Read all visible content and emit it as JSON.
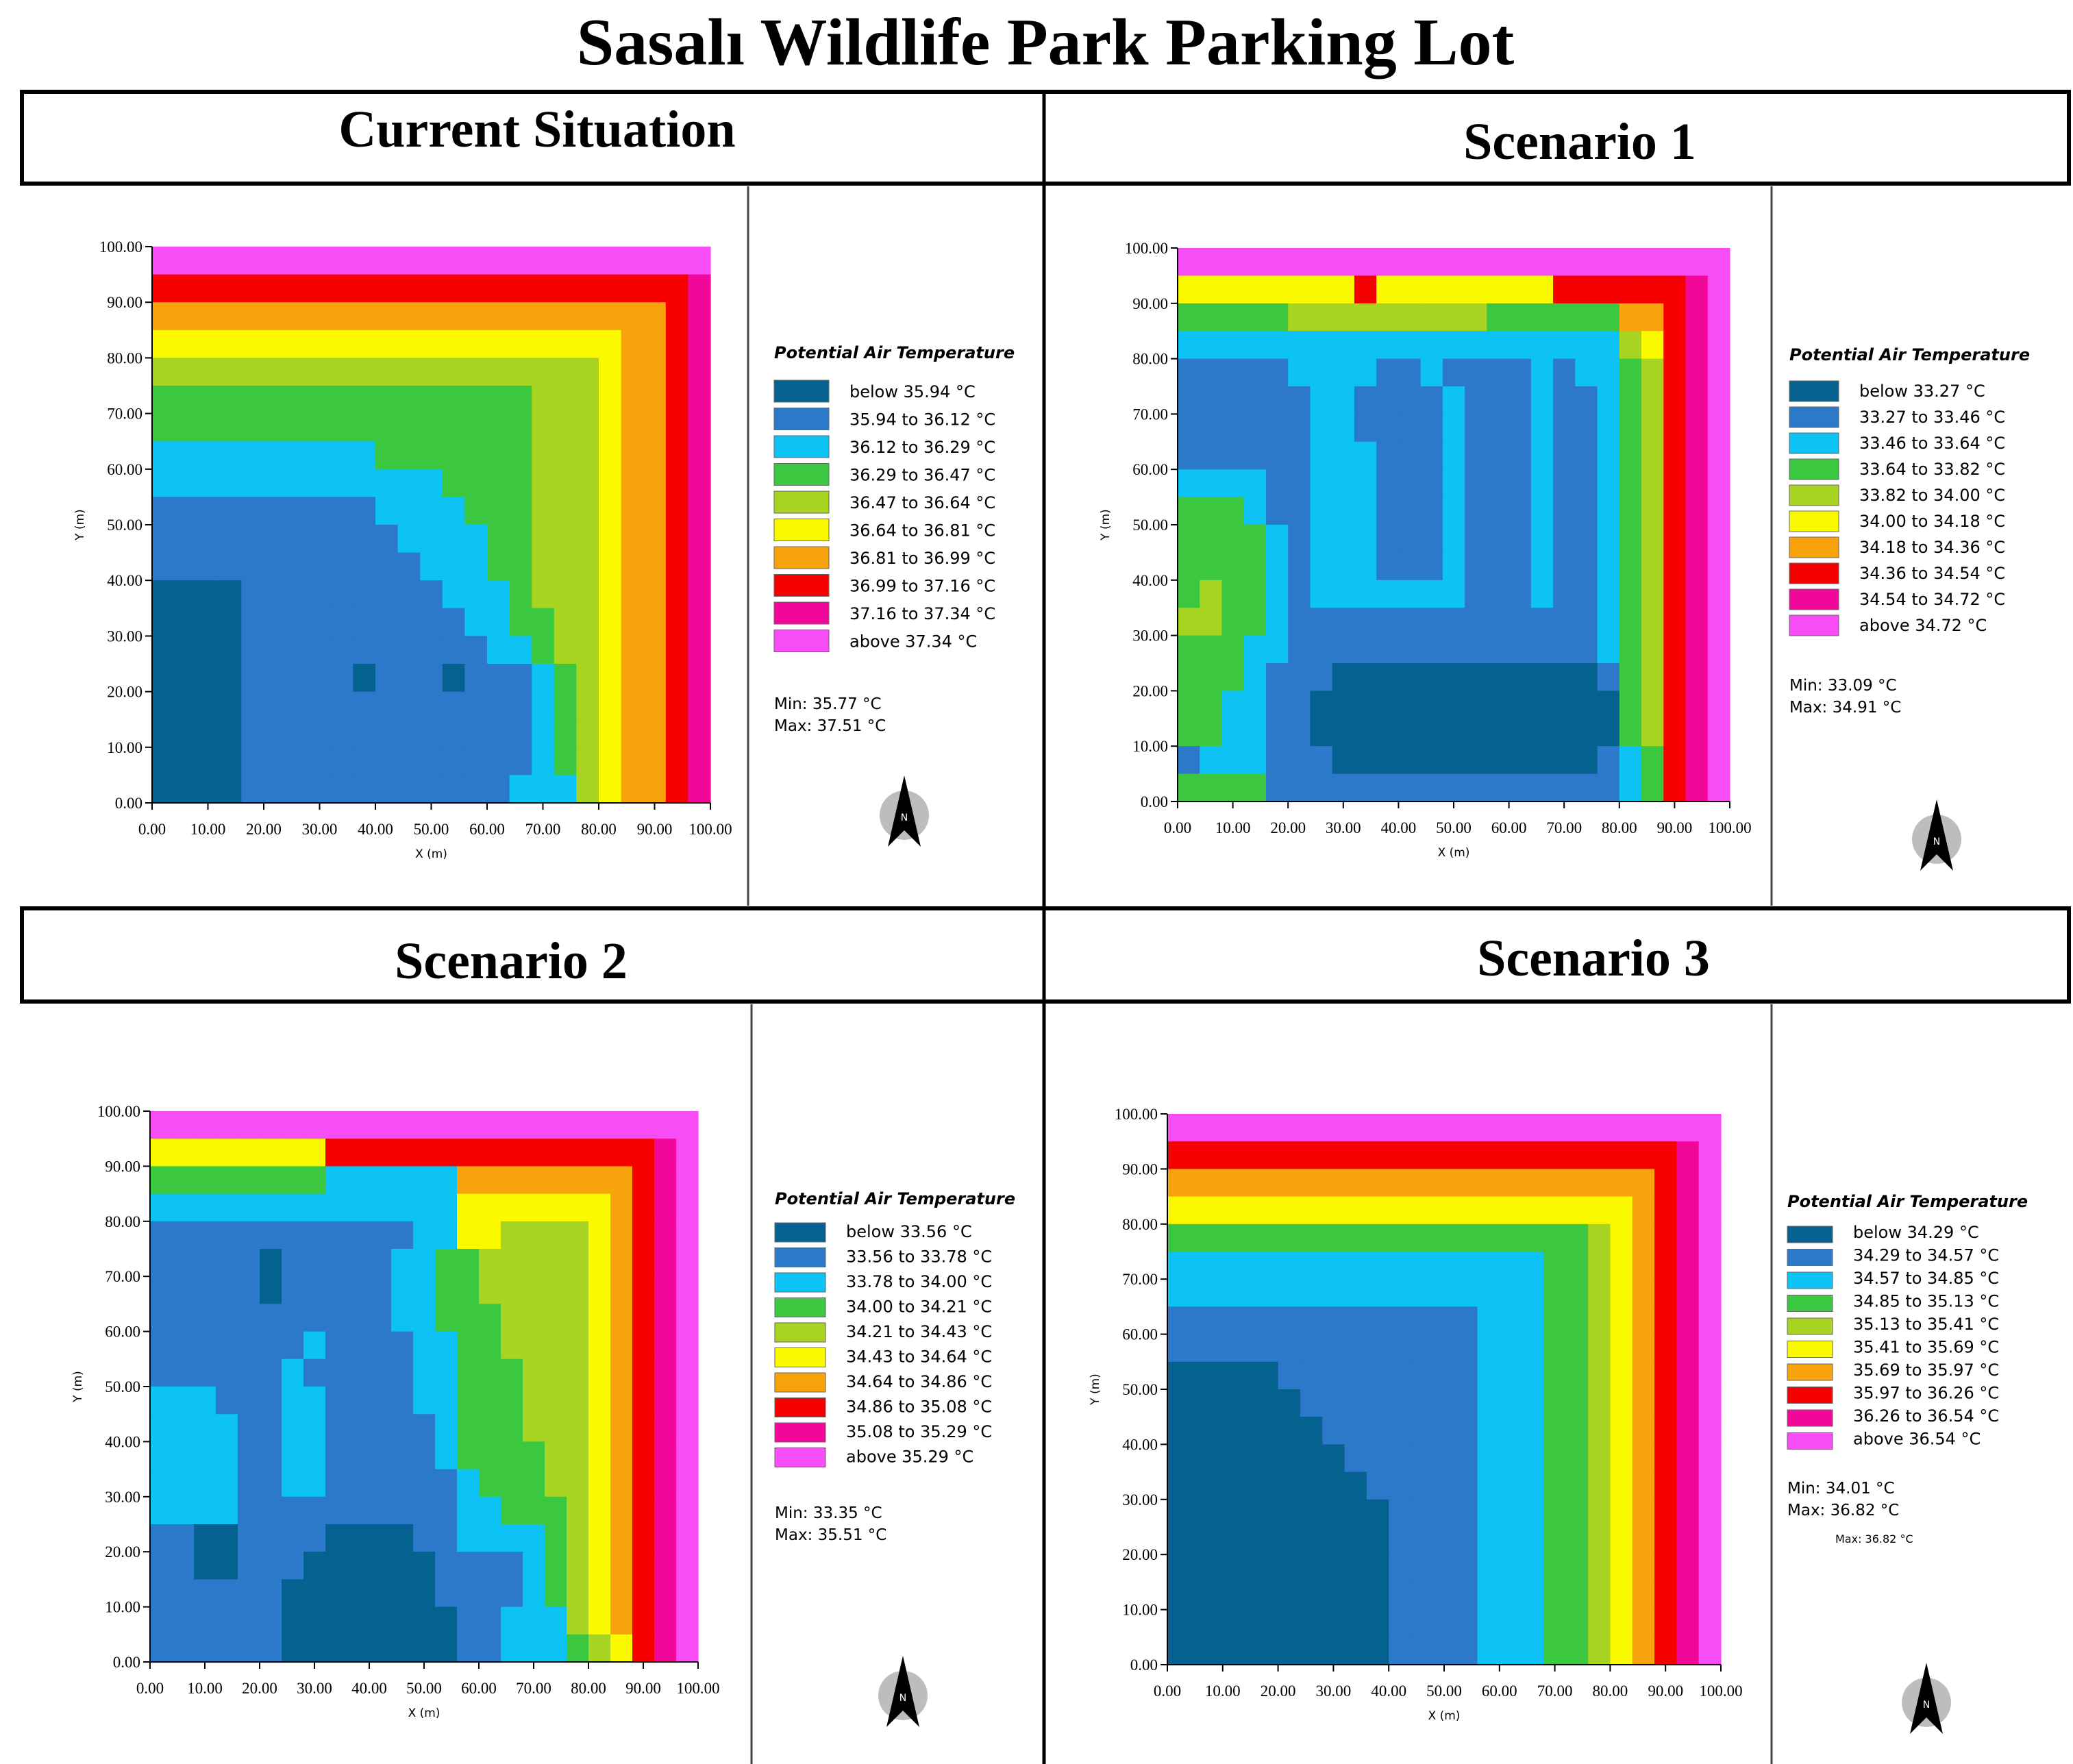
{
  "title": "Sasalı Wildlife Park Parking Lot",
  "colors": [
    "#05618f",
    "#2c78c9",
    "#0dc2f5",
    "#3cc741",
    "#a7d420",
    "#fbf900",
    "#f8a20c",
    "#f70000",
    "#f1089a",
    "#f84cf6"
  ],
  "legend_title": "Potential Air Temperature",
  "chart_data": [
    {
      "type": "heatmap",
      "panel_title": "Current Situation",
      "xlabel": "X (m)",
      "ylabel": "Y (m)",
      "xlim": [
        0,
        100
      ],
      "ylim": [
        0,
        100
      ],
      "xticks": [
        "0.00",
        "10.00",
        "20.00",
        "30.00",
        "40.00",
        "50.00",
        "60.00",
        "70.00",
        "80.00",
        "90.00",
        "100.00"
      ],
      "yticks": [
        "0.00",
        "10.00",
        "20.00",
        "30.00",
        "40.00",
        "50.00",
        "60.00",
        "70.00",
        "80.00",
        "90.00",
        "100.00"
      ],
      "legend": [
        "below 35.94 °C",
        "35.94 to 36.12 °C",
        "36.12 to 36.29 °C",
        "36.29 to 36.47 °C",
        "36.47 to 36.64 °C",
        "36.64 to 36.81 °C",
        "36.81 to 36.99 °C",
        "36.99 to 37.16 °C",
        "37.16 to 37.34 °C",
        "above 37.34 °C"
      ],
      "min_label": "Min: 35.77 °C",
      "max_label": "Max: 37.51 °C",
      "extra_label": "",
      "grid": [
        "9999999999999999999999999",
        "7777777777777777777777778",
        "6666666666666666666666678",
        "5555555555555555555556678",
        "4444444444444444444456678",
        "3333333333333333344456678",
        "3333333333333333344456678",
        "2222222222333333344456678",
        "2222222222222333344456678",
        "1111111111222233344456678",
        "1111111111122223344456678",
        "1111111111112223344456678",
        "0000111111111222344456678",
        "0000111111111122334456678",
        "0000111111111112234456678",
        "0000111110111011123456678",
        "0000111111111111123456678",
        "0000111111111111123456678",
        "0000111111111111123456678",
        "0000111111111111222456678"
      ]
    },
    {
      "type": "heatmap",
      "panel_title": "Scenario 1",
      "xlabel": "X (m)",
      "ylabel": "Y (m)",
      "xlim": [
        0,
        100
      ],
      "ylim": [
        0,
        100
      ],
      "xticks": [
        "0.00",
        "10.00",
        "20.00",
        "30.00",
        "40.00",
        "50.00",
        "60.00",
        "70.00",
        "80.00",
        "90.00",
        "100.00"
      ],
      "yticks": [
        "0.00",
        "10.00",
        "20.00",
        "30.00",
        "40.00",
        "50.00",
        "60.00",
        "70.00",
        "80.00",
        "90.00",
        "100.00"
      ],
      "legend": [
        "below 33.27 °C",
        "33.27 to 33.46 °C",
        "33.46 to 33.64 °C",
        "33.64 to 33.82 °C",
        "33.82 to 34.00 °C",
        "34.00 to 34.18 °C",
        "34.18 to 34.36 °C",
        "34.36 to 34.54 °C",
        "34.54 to 34.72 °C",
        "above 34.72 °C"
      ],
      "min_label": "Min: 33.09 °C",
      "max_label": "Max: 34.91 °C",
      "extra_label": "",
      "grid": [
        "9999999999999999999999999",
        "5555555575555555577777789",
        "3333344444444433333366789",
        "2222222222222222222245789",
        "1111122221121111212234789",
        "1111112211112111211234789",
        "1111112211112111211234789",
        "1111112221112111211234789",
        "2222112221112111211234789",
        "3332112221112111211234789",
        "3333212221112111211234789",
        "3333212221112111211234789",
        "3433212222222111211234789",
        "4433211111111111111234789",
        "3332211111111111111234789",
        "3332111000000000000134789",
        "3322110000000000000034789",
        "3322110000000000000034789",
        "1222111000000000000123789",
        "3333111111111111111123789"
      ]
    },
    {
      "type": "heatmap",
      "panel_title": "Scenario 2",
      "xlabel": "X (m)",
      "ylabel": "Y (m)",
      "xlim": [
        0,
        100
      ],
      "ylim": [
        0,
        100
      ],
      "xticks": [
        "0.00",
        "10.00",
        "20.00",
        "30.00",
        "40.00",
        "50.00",
        "60.00",
        "70.00",
        "80.00",
        "90.00",
        "100.00"
      ],
      "yticks": [
        "0.00",
        "10.00",
        "20.00",
        "30.00",
        "40.00",
        "50.00",
        "60.00",
        "70.00",
        "80.00",
        "90.00",
        "100.00"
      ],
      "legend": [
        "below 33.56 °C",
        "33.56 to 33.78 °C",
        "33.78 to 34.00 °C",
        "34.00 to 34.21 °C",
        "34.21 to 34.43 °C",
        "34.43 to 34.64 °C",
        "34.64 to 34.86 °C",
        "34.86 to 35.08 °C",
        "35.08 to 35.29 °C",
        "above 35.29 °C"
      ],
      "min_label": "Min: 33.35 °C",
      "max_label": "Max: 35.51 °C",
      "extra_label": "",
      "grid": [
        "9999999999999999999999999",
        "5555555577777777777777789",
        "3333333322222266666666789",
        "2222222222222255555556789",
        "1111111111112255444456789",
        "1111101111122334444456789",
        "1111101111122334444456789",
        "1111111111122333444456789",
        "1111111211112233444456789",
        "1111112111112233344456789",
        "2221112211112233344456789",
        "2222112211111233344456789",
        "2222112211111233334456789",
        "2222112211111123334456789",
        "2222111111111122333456789",
        "1100111100001122223456789",
        "1100111000000111123456789",
        "1111110000000111123456789",
        "1111110000000011222456789",
        "1111110000000011222345789"
      ]
    },
    {
      "type": "heatmap",
      "panel_title": "Scenario 3",
      "xlabel": "X (m)",
      "ylabel": "Y (m)",
      "xlim": [
        0,
        100
      ],
      "ylim": [
        0,
        100
      ],
      "xticks": [
        "0.00",
        "10.00",
        "20.00",
        "30.00",
        "40.00",
        "50.00",
        "60.00",
        "70.00",
        "80.00",
        "90.00",
        "100.00"
      ],
      "yticks": [
        "0.00",
        "10.00",
        "20.00",
        "30.00",
        "40.00",
        "50.00",
        "60.00",
        "70.00",
        "80.00",
        "90.00",
        "100.00"
      ],
      "legend": [
        "below 34.29 °C",
        "34.29 to 34.57 °C",
        "34.57 to 34.85 °C",
        "34.85 to 35.13 °C",
        "35.13 to 35.41 °C",
        "35.41 to 35.69 °C",
        "35.69 to 35.97 °C",
        "35.97 to 36.26 °C",
        "36.26 to 36.54 °C",
        "above 36.54 °C"
      ],
      "min_label": "Min: 34.01 °C",
      "max_label": "Max: 36.82 °C",
      "extra_label": "Max: 36.82 °C",
      "grid": [
        "9999999999999999999999999",
        "7777777777777777777777789",
        "6666666666666666666666789",
        "5555555555555555555556789",
        "3333333333333333333456789",
        "2222222222222222233456789",
        "2222222222222222233456789",
        "1111111111111122233456789",
        "1111111111111122233456789",
        "0000011111111122233456789",
        "0000001111111122233456789",
        "0000000111111122233456789",
        "0000000011111122233456789",
        "0000000001111122233456789",
        "0000000000111122233456789",
        "0000000000111122233456789",
        "0000000000111122233456789",
        "0000000000111122233456789",
        "0000000000111122233456789",
        "0000000000111122233456789"
      ]
    }
  ]
}
